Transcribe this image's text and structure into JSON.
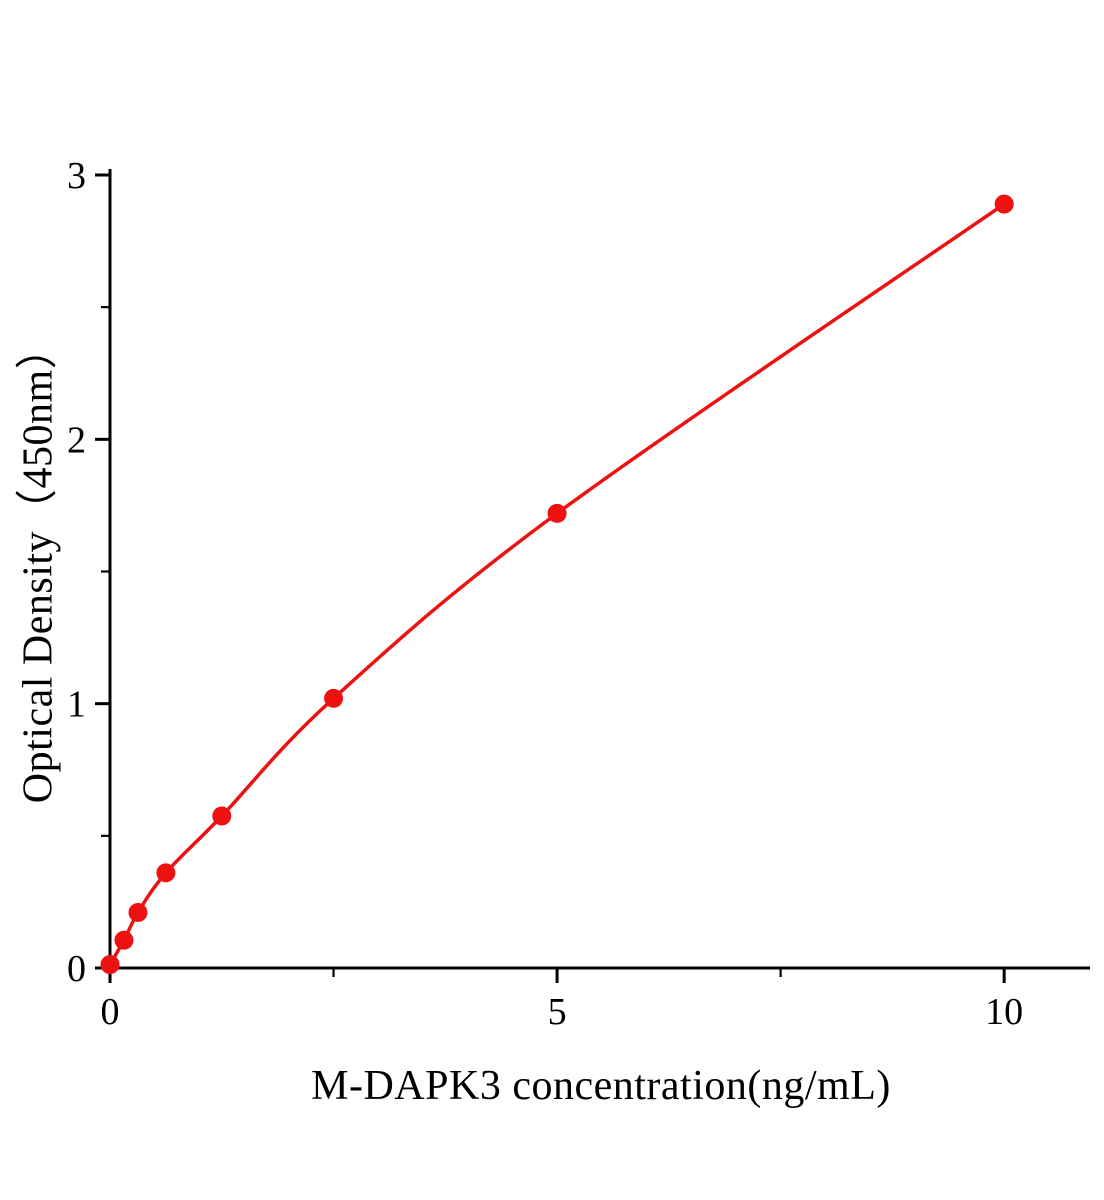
{
  "chart_data": {
    "type": "line",
    "x": [
      0,
      0.156,
      0.313,
      0.625,
      1.25,
      2.5,
      5,
      10
    ],
    "y": [
      0.013,
      0.105,
      0.21,
      0.36,
      0.575,
      1.02,
      1.72,
      2.89
    ],
    "xlabel": "M-DAPK3 concentration(ng/mL)",
    "ylabel": "Optical Density（450nm）",
    "xlim": [
      0,
      10.96
    ],
    "ylim": [
      0,
      3
    ],
    "x_major_ticks": [
      0,
      5,
      10
    ],
    "x_major_tick_labels": [
      "0",
      "5",
      "10"
    ],
    "x_minor_ticks": [
      2.5,
      7.5
    ],
    "y_major_ticks": [
      0,
      1,
      2,
      3
    ],
    "y_major_tick_labels": [
      "0",
      "1",
      "2",
      "3"
    ],
    "y_minor_ticks": [
      0.5,
      1.5,
      2.5
    ],
    "line_color": "#ee1111",
    "marker_color": "#ee1111",
    "axis_color": "#000000",
    "grid": false,
    "legend": null
  }
}
